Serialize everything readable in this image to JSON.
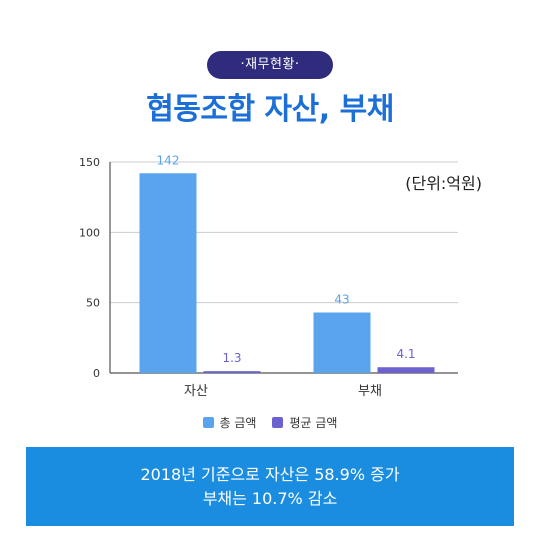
{
  "header": {
    "badge": "·재무현황·",
    "title": "협동조합 자산, 부채"
  },
  "unit_label": "(단위:억원)",
  "chart_data": {
    "type": "bar",
    "categories": [
      "자산",
      "부채"
    ],
    "series": [
      {
        "name": "총 금액",
        "values": [
          142,
          43
        ],
        "labels": [
          "142",
          "43"
        ],
        "color": "#5aa4ee"
      },
      {
        "name": "평균 금액",
        "values": [
          1.3,
          4.1
        ],
        "labels": [
          "1.3",
          "4.1"
        ],
        "color": "#6b62cf"
      }
    ],
    "ylim": [
      0,
      150
    ],
    "yticks": [
      "0",
      "50",
      "100",
      "150"
    ],
    "grid": true,
    "legend_position": "bottom"
  },
  "legend": [
    {
      "label": "총 금액",
      "color": "#5aa4ee"
    },
    {
      "label": "평균 금액",
      "color": "#6b62cf"
    }
  ],
  "summary": {
    "line1": "2018년 기준으로 자산은 58.9% 증가",
    "line2": "부채는 10.7% 감소"
  }
}
